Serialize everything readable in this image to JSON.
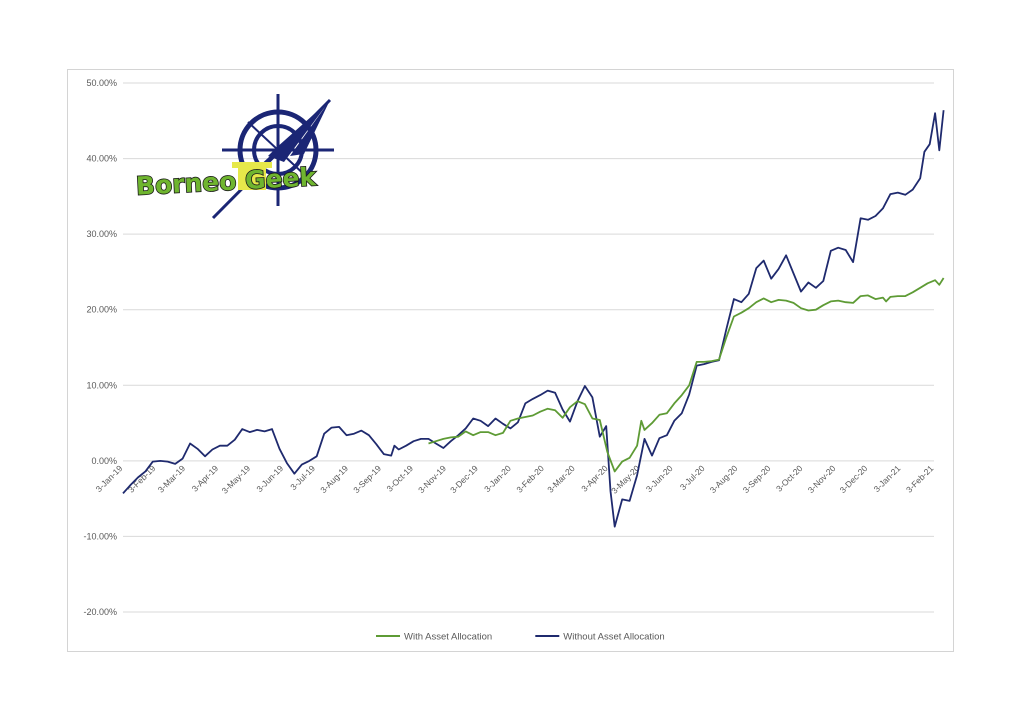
{
  "chart_data": {
    "type": "line",
    "y_axis": {
      "min": -20,
      "max": 50,
      "step": 10,
      "tick_labels": [
        "-20.00%",
        "-10.00%",
        "0.00%",
        "10.00%",
        "20.00%",
        "30.00%",
        "40.00%",
        "50.00%"
      ]
    },
    "x_axis": {
      "start": "2019-01-03",
      "end": "2021-02-03",
      "tick_dates": [
        "2019-01-03",
        "2019-02-03",
        "2019-03-03",
        "2019-04-03",
        "2019-05-03",
        "2019-06-03",
        "2019-07-03",
        "2019-08-03",
        "2019-09-03",
        "2019-10-03",
        "2019-11-03",
        "2019-12-03",
        "2020-01-03",
        "2020-02-03",
        "2020-03-03",
        "2020-04-03",
        "2020-05-03",
        "2020-06-03",
        "2020-07-03",
        "2020-08-03",
        "2020-09-03",
        "2020-10-03",
        "2020-11-03",
        "2020-12-03",
        "2021-01-03",
        "2021-02-03"
      ],
      "tick_labels": [
        "3-Jan-19",
        "3-Feb-19",
        "3-Mar-19",
        "3-Apr-19",
        "3-May-19",
        "3-Jun-19",
        "3-Jul-19",
        "3-Aug-19",
        "3-Sep-19",
        "3-Oct-19",
        "3-Nov-19",
        "3-Dec-19",
        "3-Jan-20",
        "3-Feb-20",
        "3-Mar-20",
        "3-Apr-20",
        "3-May-20",
        "3-Jun-20",
        "3-Jul-20",
        "3-Aug-20",
        "3-Sep-20",
        "3-Oct-20",
        "3-Nov-20",
        "3-Dec-20",
        "3-Jan-21",
        "3-Feb-21"
      ]
    },
    "grid": "horizontal",
    "legend_position": "bottom",
    "series": [
      {
        "name": "Without Asset Allocation",
        "color": "#1f2a6e",
        "points": [
          [
            "2019-01-03",
            -4.3
          ],
          [
            "2019-01-10",
            -3.2
          ],
          [
            "2019-01-17",
            -2.2
          ],
          [
            "2019-01-24",
            -1.4
          ],
          [
            "2019-01-31",
            -0.1
          ],
          [
            "2019-02-07",
            0.0
          ],
          [
            "2019-02-14",
            -0.1
          ],
          [
            "2019-02-21",
            -0.4
          ],
          [
            "2019-02-28",
            0.3
          ],
          [
            "2019-03-07",
            2.3
          ],
          [
            "2019-03-14",
            1.6
          ],
          [
            "2019-03-21",
            0.6
          ],
          [
            "2019-03-28",
            1.5
          ],
          [
            "2019-04-04",
            2.0
          ],
          [
            "2019-04-11",
            2.0
          ],
          [
            "2019-04-18",
            2.8
          ],
          [
            "2019-04-25",
            4.2
          ],
          [
            "2019-05-02",
            3.8
          ],
          [
            "2019-05-09",
            4.1
          ],
          [
            "2019-05-16",
            3.9
          ],
          [
            "2019-05-23",
            4.2
          ],
          [
            "2019-05-30",
            1.6
          ],
          [
            "2019-06-06",
            -0.3
          ],
          [
            "2019-06-13",
            -1.7
          ],
          [
            "2019-06-20",
            -0.5
          ],
          [
            "2019-06-27",
            0.0
          ],
          [
            "2019-07-04",
            0.6
          ],
          [
            "2019-07-11",
            3.6
          ],
          [
            "2019-07-18",
            4.4
          ],
          [
            "2019-07-25",
            4.5
          ],
          [
            "2019-08-01",
            3.4
          ],
          [
            "2019-08-08",
            3.6
          ],
          [
            "2019-08-15",
            4.0
          ],
          [
            "2019-08-22",
            3.4
          ],
          [
            "2019-08-29",
            2.2
          ],
          [
            "2019-09-05",
            0.9
          ],
          [
            "2019-09-12",
            0.7
          ],
          [
            "2019-09-15",
            2.0
          ],
          [
            "2019-09-19",
            1.5
          ],
          [
            "2019-09-26",
            2.0
          ],
          [
            "2019-10-03",
            2.6
          ],
          [
            "2019-10-10",
            2.9
          ],
          [
            "2019-10-17",
            2.9
          ],
          [
            "2019-10-24",
            2.3
          ],
          [
            "2019-10-31",
            1.7
          ],
          [
            "2019-11-07",
            2.6
          ],
          [
            "2019-11-14",
            3.4
          ],
          [
            "2019-11-21",
            4.3
          ],
          [
            "2019-11-28",
            5.6
          ],
          [
            "2019-12-05",
            5.3
          ],
          [
            "2019-12-12",
            4.6
          ],
          [
            "2019-12-19",
            5.6
          ],
          [
            "2019-12-26",
            4.9
          ],
          [
            "2020-01-02",
            4.3
          ],
          [
            "2020-01-09",
            5.1
          ],
          [
            "2020-01-16",
            7.6
          ],
          [
            "2020-01-23",
            8.2
          ],
          [
            "2020-01-30",
            8.7
          ],
          [
            "2020-02-06",
            9.3
          ],
          [
            "2020-02-13",
            9.0
          ],
          [
            "2020-02-20",
            6.8
          ],
          [
            "2020-02-27",
            5.2
          ],
          [
            "2020-03-05",
            7.9
          ],
          [
            "2020-03-12",
            9.9
          ],
          [
            "2020-03-19",
            8.4
          ],
          [
            "2020-03-26",
            3.2
          ],
          [
            "2020-04-01",
            4.6
          ],
          [
            "2020-04-05",
            -4.0
          ],
          [
            "2020-04-09",
            -8.7
          ],
          [
            "2020-04-16",
            -5.1
          ],
          [
            "2020-04-23",
            -5.3
          ],
          [
            "2020-04-30",
            -1.9
          ],
          [
            "2020-05-07",
            2.9
          ],
          [
            "2020-05-14",
            0.7
          ],
          [
            "2020-05-21",
            3.0
          ],
          [
            "2020-05-28",
            3.4
          ],
          [
            "2020-06-04",
            5.3
          ],
          [
            "2020-06-11",
            6.3
          ],
          [
            "2020-06-18",
            8.8
          ],
          [
            "2020-06-25",
            12.6
          ],
          [
            "2020-07-02",
            12.8
          ],
          [
            "2020-07-09",
            13.1
          ],
          [
            "2020-07-16",
            13.3
          ],
          [
            "2020-07-23",
            17.5
          ],
          [
            "2020-07-30",
            21.4
          ],
          [
            "2020-08-06",
            21.0
          ],
          [
            "2020-08-13",
            22.1
          ],
          [
            "2020-08-20",
            25.5
          ],
          [
            "2020-08-27",
            26.5
          ],
          [
            "2020-09-03",
            24.1
          ],
          [
            "2020-09-10",
            25.4
          ],
          [
            "2020-09-17",
            27.2
          ],
          [
            "2020-09-24",
            24.8
          ],
          [
            "2020-10-01",
            22.4
          ],
          [
            "2020-10-08",
            23.6
          ],
          [
            "2020-10-15",
            22.9
          ],
          [
            "2020-10-22",
            23.8
          ],
          [
            "2020-10-29",
            27.8
          ],
          [
            "2020-11-05",
            28.2
          ],
          [
            "2020-11-12",
            27.9
          ],
          [
            "2020-11-19",
            26.3
          ],
          [
            "2020-11-26",
            32.1
          ],
          [
            "2020-12-03",
            31.9
          ],
          [
            "2020-12-10",
            32.4
          ],
          [
            "2020-12-17",
            33.4
          ],
          [
            "2020-12-24",
            35.3
          ],
          [
            "2020-12-31",
            35.5
          ],
          [
            "2021-01-07",
            35.2
          ],
          [
            "2021-01-14",
            35.9
          ],
          [
            "2021-01-21",
            37.4
          ],
          [
            "2021-01-25",
            40.9
          ],
          [
            "2021-01-30",
            41.9
          ],
          [
            "2021-02-04",
            46.0
          ],
          [
            "2021-02-08",
            41.1
          ],
          [
            "2021-02-12",
            46.4
          ]
        ]
      },
      {
        "name": "With Asset Allocation",
        "color": "#5e9b35",
        "points": [
          [
            "2019-10-17",
            2.3
          ],
          [
            "2019-10-24",
            2.6
          ],
          [
            "2019-10-31",
            2.9
          ],
          [
            "2019-11-07",
            3.1
          ],
          [
            "2019-11-14",
            3.2
          ],
          [
            "2019-11-21",
            3.9
          ],
          [
            "2019-11-28",
            3.4
          ],
          [
            "2019-12-05",
            3.8
          ],
          [
            "2019-12-12",
            3.8
          ],
          [
            "2019-12-19",
            3.4
          ],
          [
            "2019-12-26",
            3.7
          ],
          [
            "2020-01-02",
            5.3
          ],
          [
            "2020-01-09",
            5.6
          ],
          [
            "2020-01-16",
            5.8
          ],
          [
            "2020-01-23",
            6.0
          ],
          [
            "2020-01-30",
            6.5
          ],
          [
            "2020-02-06",
            6.9
          ],
          [
            "2020-02-13",
            6.7
          ],
          [
            "2020-02-20",
            5.7
          ],
          [
            "2020-02-27",
            7.1
          ],
          [
            "2020-03-05",
            7.9
          ],
          [
            "2020-03-12",
            7.5
          ],
          [
            "2020-03-19",
            5.6
          ],
          [
            "2020-03-26",
            5.4
          ],
          [
            "2020-04-02",
            1.2
          ],
          [
            "2020-04-09",
            -1.4
          ],
          [
            "2020-04-16",
            -0.1
          ],
          [
            "2020-04-23",
            0.4
          ],
          [
            "2020-04-30",
            2.0
          ],
          [
            "2020-05-04",
            5.3
          ],
          [
            "2020-05-07",
            4.1
          ],
          [
            "2020-05-14",
            5.0
          ],
          [
            "2020-05-21",
            6.1
          ],
          [
            "2020-05-28",
            6.3
          ],
          [
            "2020-06-04",
            7.6
          ],
          [
            "2020-06-11",
            8.7
          ],
          [
            "2020-06-18",
            10.0
          ],
          [
            "2020-06-25",
            13.1
          ],
          [
            "2020-07-02",
            13.1
          ],
          [
            "2020-07-09",
            13.2
          ],
          [
            "2020-07-16",
            13.4
          ],
          [
            "2020-07-23",
            16.4
          ],
          [
            "2020-07-30",
            19.1
          ],
          [
            "2020-08-06",
            19.6
          ],
          [
            "2020-08-13",
            20.2
          ],
          [
            "2020-08-20",
            21.0
          ],
          [
            "2020-08-27",
            21.5
          ],
          [
            "2020-09-03",
            21.0
          ],
          [
            "2020-09-10",
            21.3
          ],
          [
            "2020-09-17",
            21.2
          ],
          [
            "2020-09-24",
            20.9
          ],
          [
            "2020-10-01",
            20.2
          ],
          [
            "2020-10-08",
            19.9
          ],
          [
            "2020-10-15",
            20.0
          ],
          [
            "2020-10-22",
            20.6
          ],
          [
            "2020-10-29",
            21.1
          ],
          [
            "2020-11-05",
            21.2
          ],
          [
            "2020-11-12",
            21.0
          ],
          [
            "2020-11-19",
            20.9
          ],
          [
            "2020-11-26",
            21.8
          ],
          [
            "2020-12-03",
            21.9
          ],
          [
            "2020-12-10",
            21.4
          ],
          [
            "2020-12-17",
            21.6
          ],
          [
            "2020-12-20",
            21.1
          ],
          [
            "2020-12-24",
            21.7
          ],
          [
            "2020-12-31",
            21.8
          ],
          [
            "2021-01-07",
            21.8
          ],
          [
            "2021-01-14",
            22.3
          ],
          [
            "2021-01-21",
            22.9
          ],
          [
            "2021-01-28",
            23.5
          ],
          [
            "2021-02-04",
            23.9
          ],
          [
            "2021-02-08",
            23.3
          ],
          [
            "2021-02-12",
            24.2
          ]
        ]
      }
    ],
    "legend": [
      {
        "name": "With Asset Allocation",
        "color": "#5e9b35"
      },
      {
        "name": "Without Asset Allocation",
        "color": "#1f2a6e"
      }
    ]
  },
  "logo": {
    "text": "Borneo Geek",
    "compass_color": "#1b2675",
    "text_color": "#6fb52f",
    "outline_color": "#1a1a1a"
  }
}
